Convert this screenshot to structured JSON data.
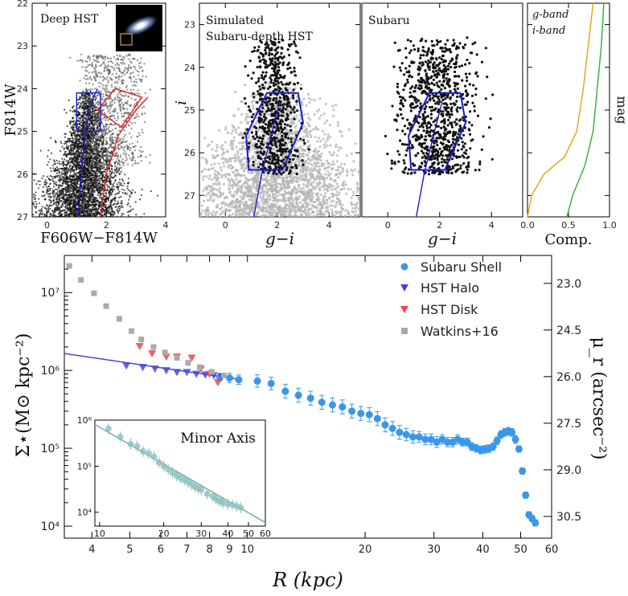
{
  "figure": {
    "axis_color": "#000000",
    "point_color": "#111111",
    "gray_color": "#b4b4b4",
    "blue_box_color": "#1a1acc",
    "red_box_color": "#dd2222"
  },
  "chart_data": [
    {
      "type": "scatter",
      "panel": "deep_hst",
      "title": "Deep HST",
      "xlabel": "F606W−F814W",
      "ylabel": "F814W",
      "xlim": [
        -0.5,
        4
      ],
      "ylim": [
        27,
        22
      ],
      "xticks": [
        0,
        2,
        4
      ],
      "yticks": [
        22,
        23,
        24,
        25,
        26,
        27
      ],
      "xtick_labels": [
        "0",
        "2",
        "4"
      ],
      "ytick_labels": [
        "22",
        "23",
        "24",
        "25",
        "26",
        "27"
      ],
      "inset_image": "galaxy-thumbnail",
      "blue_selection_box": [
        [
          1.0,
          24.1
        ],
        [
          1.8,
          24.1
        ],
        [
          1.8,
          25.0
        ],
        [
          1.0,
          25.0
        ]
      ],
      "red_selection_box": [
        [
          1.7,
          24.5
        ],
        [
          2.3,
          24.0
        ],
        [
          3.2,
          24.2
        ],
        [
          2.5,
          24.9
        ]
      ],
      "blue_isochrone": [
        [
          1.05,
          27
        ],
        [
          1.15,
          26
        ],
        [
          1.3,
          25
        ],
        [
          1.5,
          24.3
        ],
        [
          1.7,
          24.0
        ]
      ],
      "red_isochrone": [
        [
          1.8,
          27
        ],
        [
          2.0,
          26
        ],
        [
          2.4,
          25.1
        ],
        [
          3.0,
          24.5
        ],
        [
          3.4,
          24.2
        ]
      ]
    },
    {
      "type": "scatter",
      "panel": "simulated",
      "title": "Simulated",
      "title2": "Subaru-depth HST",
      "xlabel": "g−i",
      "ylabel": "i",
      "xlim": [
        -1,
        5.2
      ],
      "ylim": [
        27.5,
        22.5
      ],
      "xticks": [
        0,
        2,
        4
      ],
      "yticks": [
        23,
        24,
        25,
        26,
        27
      ],
      "xtick_labels": [
        "0",
        "2",
        "4"
      ],
      "ytick_labels": [
        "23",
        "24",
        "25",
        "26",
        "27"
      ],
      "blue_selection_box": [
        [
          0.9,
          26.4
        ],
        [
          2.2,
          26.4
        ],
        [
          3.0,
          25.3
        ],
        [
          2.8,
          24.6
        ],
        [
          1.6,
          24.6
        ],
        [
          0.8,
          25.6
        ]
      ],
      "blue_isochrone": [
        [
          1.1,
          27.5
        ],
        [
          1.4,
          26.5
        ],
        [
          1.8,
          25.5
        ],
        [
          2.1,
          24.8
        ]
      ]
    },
    {
      "type": "scatter",
      "panel": "subaru",
      "title": "Subaru",
      "xlabel": "g−i",
      "xlim": [
        -1,
        5.2
      ],
      "ylim": [
        27.5,
        22.5
      ],
      "xticks": [
        0,
        2,
        4
      ],
      "xtick_labels": [
        "0",
        "2",
        "4"
      ],
      "blue_selection_box": [
        [
          0.9,
          26.4
        ],
        [
          2.2,
          26.4
        ],
        [
          3.0,
          25.3
        ],
        [
          2.8,
          24.6
        ],
        [
          1.6,
          24.6
        ],
        [
          0.8,
          25.6
        ]
      ],
      "blue_isochrone": [
        [
          1.1,
          27.5
        ],
        [
          1.4,
          26.5
        ],
        [
          1.8,
          25.5
        ],
        [
          2.1,
          24.8
        ]
      ]
    },
    {
      "type": "line",
      "panel": "completeness",
      "xlabel": "Comp.",
      "ylabel": "mag",
      "xlim": [
        0,
        1
      ],
      "ylim": [
        27.5,
        22.5
      ],
      "xticks": [
        0,
        0.5,
        1
      ],
      "xtick_labels": [
        "0.0",
        "0.5",
        "1.0"
      ],
      "legend": [
        "g-band",
        "i-band"
      ],
      "series": [
        {
          "name": "g-band",
          "color": "#3cb43c",
          "points": [
            [
              0.48,
              27.5
            ],
            [
              0.55,
              27.0
            ],
            [
              0.7,
              26.3
            ],
            [
              0.8,
              25.5
            ],
            [
              0.85,
              24.5
            ],
            [
              0.9,
              23.5
            ],
            [
              0.93,
              22.5
            ]
          ]
        },
        {
          "name": "i-band",
          "color": "#e6a820",
          "points": [
            [
              0.0,
              27.5
            ],
            [
              0.05,
              27.0
            ],
            [
              0.2,
              26.5
            ],
            [
              0.45,
              26.1
            ],
            [
              0.6,
              25.5
            ],
            [
              0.68,
              24.5
            ],
            [
              0.74,
              23.5
            ],
            [
              0.8,
              22.5
            ]
          ]
        }
      ]
    },
    {
      "type": "scatter",
      "panel": "profile",
      "xlabel": "R (kpc)",
      "ylabel": "Σ⋆(M⊙ kpc⁻²)",
      "ylabel_right": "μ_r (arcsec⁻²)",
      "xscale": "log",
      "yscale": "log",
      "xlim": [
        3.4,
        60
      ],
      "ylim": [
        7000,
        30000000
      ],
      "xticks": [
        4,
        5,
        6,
        7,
        8,
        9,
        10,
        20,
        30,
        40,
        50,
        60
      ],
      "xtick_labels": [
        "4",
        "5",
        "6",
        "7",
        "8",
        "9",
        "10",
        "20",
        "30",
        "40",
        "50",
        "60"
      ],
      "yticks": [
        10000,
        100000,
        1000000,
        10000000
      ],
      "ytick_labels": [
        "10⁴",
        "10⁵",
        "10⁶",
        "10⁷"
      ],
      "right_ticks": [
        23.0,
        24.5,
        26.0,
        27.5,
        29.0,
        30.5
      ],
      "right_tick_labels": [
        "23.0",
        "24.5",
        "26.0",
        "27.5",
        "29.0",
        "30.5"
      ],
      "legend": [
        "Subaru Shell",
        "HST Halo",
        "HST Disk",
        "Watkins+16"
      ],
      "legend_position": "top-right",
      "series": [
        {
          "name": "Subaru Shell",
          "color": "#3a96e8",
          "marker": "circle",
          "x": [
            8.5,
            9.0,
            9.5,
            10.6,
            11.5,
            12.5,
            13.5,
            14.5,
            15.5,
            16.5,
            17.5,
            18.5,
            19.5,
            20.5,
            21.5,
            22.5,
            23.5,
            24.5,
            25.5,
            26.5,
            27.5,
            28.5,
            29.5,
            30.5,
            31.5,
            32.5,
            33.5,
            34.5,
            35.5,
            36.5,
            37.5,
            38.5,
            39.5,
            40.5,
            41.5,
            42.5,
            43.5,
            44.5,
            45.5,
            46.5,
            47.5,
            48.5,
            49.5,
            50.5,
            51.5,
            52.5,
            53.5,
            54.5
          ],
          "y": [
            820000,
            800000,
            760000,
            730000,
            680000,
            540000,
            480000,
            440000,
            390000,
            360000,
            340000,
            300000,
            280000,
            270000,
            240000,
            200000,
            180000,
            160000,
            150000,
            140000,
            140000,
            130000,
            130000,
            120000,
            130000,
            120000,
            120000,
            130000,
            120000,
            120000,
            105000,
            100000,
            95000,
            97000,
            99000,
            105000,
            125000,
            150000,
            160000,
            165000,
            160000,
            130000,
            98000,
            51000,
            25000,
            14000,
            12500,
            11000
          ],
          "yerr": [
            0.05,
            0.06,
            0.06,
            0.08,
            0.08,
            0.09,
            0.09,
            0.09,
            0.09,
            0.09,
            0.09,
            0.09,
            0.09,
            0.09,
            0.09,
            0.09,
            0.09,
            0.09,
            0.08,
            0.08,
            0.07,
            0.07,
            0.07,
            0.07,
            0.06,
            0.06,
            0.06,
            0.06,
            0.05,
            0.05,
            0.05,
            0.05,
            0.05,
            0.05,
            0.05,
            0.05,
            0.05,
            0.05,
            0.05,
            0.05,
            0.05,
            0.05,
            0.04,
            0.04,
            0.04,
            0.04,
            0.04,
            0.04
          ]
        },
        {
          "name": "HST Halo",
          "color": "#4444dd",
          "marker": "triangle-down",
          "x": [
            4.9,
            5.4,
            5.8,
            6.2,
            6.6,
            7.0,
            7.4,
            7.8,
            8.2,
            8.6
          ],
          "y": [
            1150000,
            1100000,
            1050000,
            1000000,
            950000,
            950000,
            900000,
            880000,
            860000,
            830000
          ]
        },
        {
          "name": "HST Disk",
          "color": "#f04444",
          "marker": "triangle-down",
          "x": [
            5.3,
            5.7,
            6.2,
            6.6,
            7.2,
            7.6,
            8.0,
            8.4
          ],
          "y": [
            2050000,
            1650000,
            1500000,
            1500000,
            1450000,
            1050000,
            900000,
            700000
          ]
        },
        {
          "name": "Watkins+16",
          "color": "#aaaaaa",
          "marker": "square",
          "x": [
            3.5,
            3.75,
            4.05,
            4.35,
            4.7,
            5.05,
            5.35,
            5.75,
            6.15,
            6.6,
            7.05,
            7.55,
            8.1,
            8.7
          ],
          "y": [
            22000000,
            14500000,
            9800000,
            6700000,
            4600000,
            3200000,
            2500000,
            2000000,
            1700000,
            1450000,
            1250000,
            1100000,
            960000,
            860000
          ]
        }
      ],
      "fit_line": {
        "color": "#4444dd",
        "points": [
          [
            3.4,
            1650000
          ],
          [
            9.5,
            770000
          ]
        ]
      }
    },
    {
      "type": "scatter",
      "panel": "minor_axis_inset",
      "title": "Minor Axis",
      "xscale": "log",
      "yscale": "log",
      "xlim": [
        9.5,
        60
      ],
      "ylim": [
        5000,
        1000000
      ],
      "xticks": [
        10,
        20,
        30,
        40,
        50,
        60
      ],
      "xtick_labels": [
        "10",
        "20",
        "30",
        "40",
        "50",
        "60"
      ],
      "yticks": [
        10000,
        100000,
        1000000
      ],
      "ytick_labels": [
        "10⁴",
        "10⁵",
        "10⁶"
      ],
      "series": [
        {
          "name": "Minor Axis",
          "color": "#8fc0c0",
          "x": [
            11.0,
            12.5,
            14.0,
            15.0,
            16.0,
            17.0,
            18.0,
            19.0,
            20.0,
            21.0,
            22.0,
            23.0,
            24.0,
            25.0,
            26.0,
            27.0,
            28.0,
            29.0,
            30.0,
            32.0,
            34.0,
            35.0,
            36.0,
            37.0,
            38.0,
            40.0,
            42.0,
            44.0,
            46.0
          ],
          "y": [
            650000,
            430000,
            300000,
            270000,
            210000,
            190000,
            160000,
            120000,
            100000,
            85000,
            72000,
            62000,
            55000,
            50000,
            45000,
            40000,
            36000,
            33000,
            31000,
            25000,
            22000,
            20000,
            18000,
            17500,
            16000,
            15000,
            14500,
            13500,
            12500
          ]
        }
      ],
      "fit_line": {
        "color": "#6aa8a8",
        "points": [
          [
            9.5,
            800000
          ],
          [
            60,
            6000
          ]
        ]
      }
    }
  ]
}
